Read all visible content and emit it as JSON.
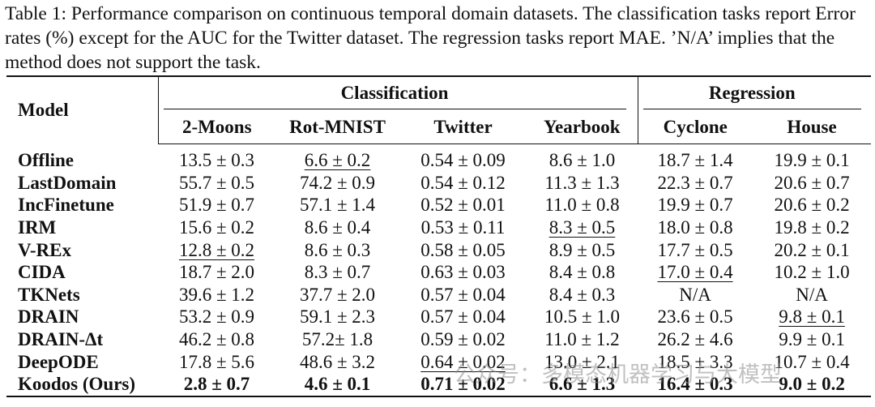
{
  "caption": "Table 1: Performance comparison on continuous temporal domain datasets. The classification tasks report Error rates (%) except for the AUC for the Twitter dataset. The regression tasks report MAE. ’N/A’ implies that the method does not support the task.",
  "table": {
    "header": {
      "model": "Model",
      "groups": [
        "Classification",
        "Regression"
      ],
      "columns": [
        "2-Moons",
        "Rot-MNIST",
        "Twitter",
        "Yearbook",
        "Cyclone",
        "House"
      ]
    },
    "rows": [
      [
        "Offline",
        "13.5 ± 0.3",
        "6.6 ± 0.2",
        "0.54 ± 0.09",
        "8.6 ± 1.0",
        "18.7 ± 1.4",
        "19.9 ± 0.1"
      ],
      [
        "LastDomain",
        "55.7 ± 0.5",
        "74.2 ± 0.9",
        "0.54 ± 0.12",
        "11.3 ± 1.3",
        "22.3 ± 0.7",
        "20.6 ± 0.7"
      ],
      [
        "IncFinetune",
        "51.9 ± 0.7",
        "57.1 ± 1.4",
        "0.52 ± 0.01",
        "11.0 ± 0.8",
        "19.9 ± 0.7",
        "20.6 ± 0.2"
      ],
      [
        "IRM",
        "15.6 ± 0.2",
        "8.6 ± 0.4",
        "0.53 ± 0.11",
        "8.3 ± 0.5",
        "18.0 ± 0.8",
        "19.8 ± 0.2"
      ],
      [
        "V-REx",
        "12.8 ± 0.2",
        "8.6 ± 0.3",
        "0.58 ± 0.05",
        "8.9 ± 0.5",
        "17.7 ± 0.5",
        "20.2 ± 0.1"
      ],
      [
        "CIDA",
        "18.7 ± 2.0",
        "8.3 ± 0.7",
        "0.63 ± 0.03",
        "8.4 ± 0.8",
        "17.0 ± 0.4",
        "10.2 ± 1.0"
      ],
      [
        "TKNets",
        "39.6 ± 1.2",
        "37.7 ± 2.0",
        "0.57 ± 0.04",
        "8.4 ± 0.3",
        "N/A",
        "N/A"
      ],
      [
        "DRAIN",
        "53.2 ± 0.9",
        "59.1 ± 2.3",
        "0.57 ± 0.04",
        "10.5 ± 1.0",
        "23.6 ± 0.5",
        "9.8 ± 0.1"
      ],
      [
        "DRAIN-Δt",
        "46.2 ± 0.8",
        "57.2± 1.8",
        "0.59 ± 0.02",
        "11.0 ± 1.2",
        "26.2 ± 4.6",
        "9.9 ± 0.1"
      ],
      [
        "DeepODE",
        "17.8 ± 5.6",
        "48.6 ± 3.2",
        "0.64 ± 0.02",
        "13.0 ± 2.1",
        "18.5 ± 3.3",
        "10.7 ± 0.4"
      ],
      [
        "Koodos (Ours)",
        "2.8 ± 0.7",
        "4.6 ± 0.1",
        "0.71 ± 0.02",
        "6.6 ± 1.3",
        "16.4 ± 0.3",
        "9.0 ± 0.2"
      ]
    ]
  },
  "watermark": "公众号：多模态机器学习与大模型"
}
